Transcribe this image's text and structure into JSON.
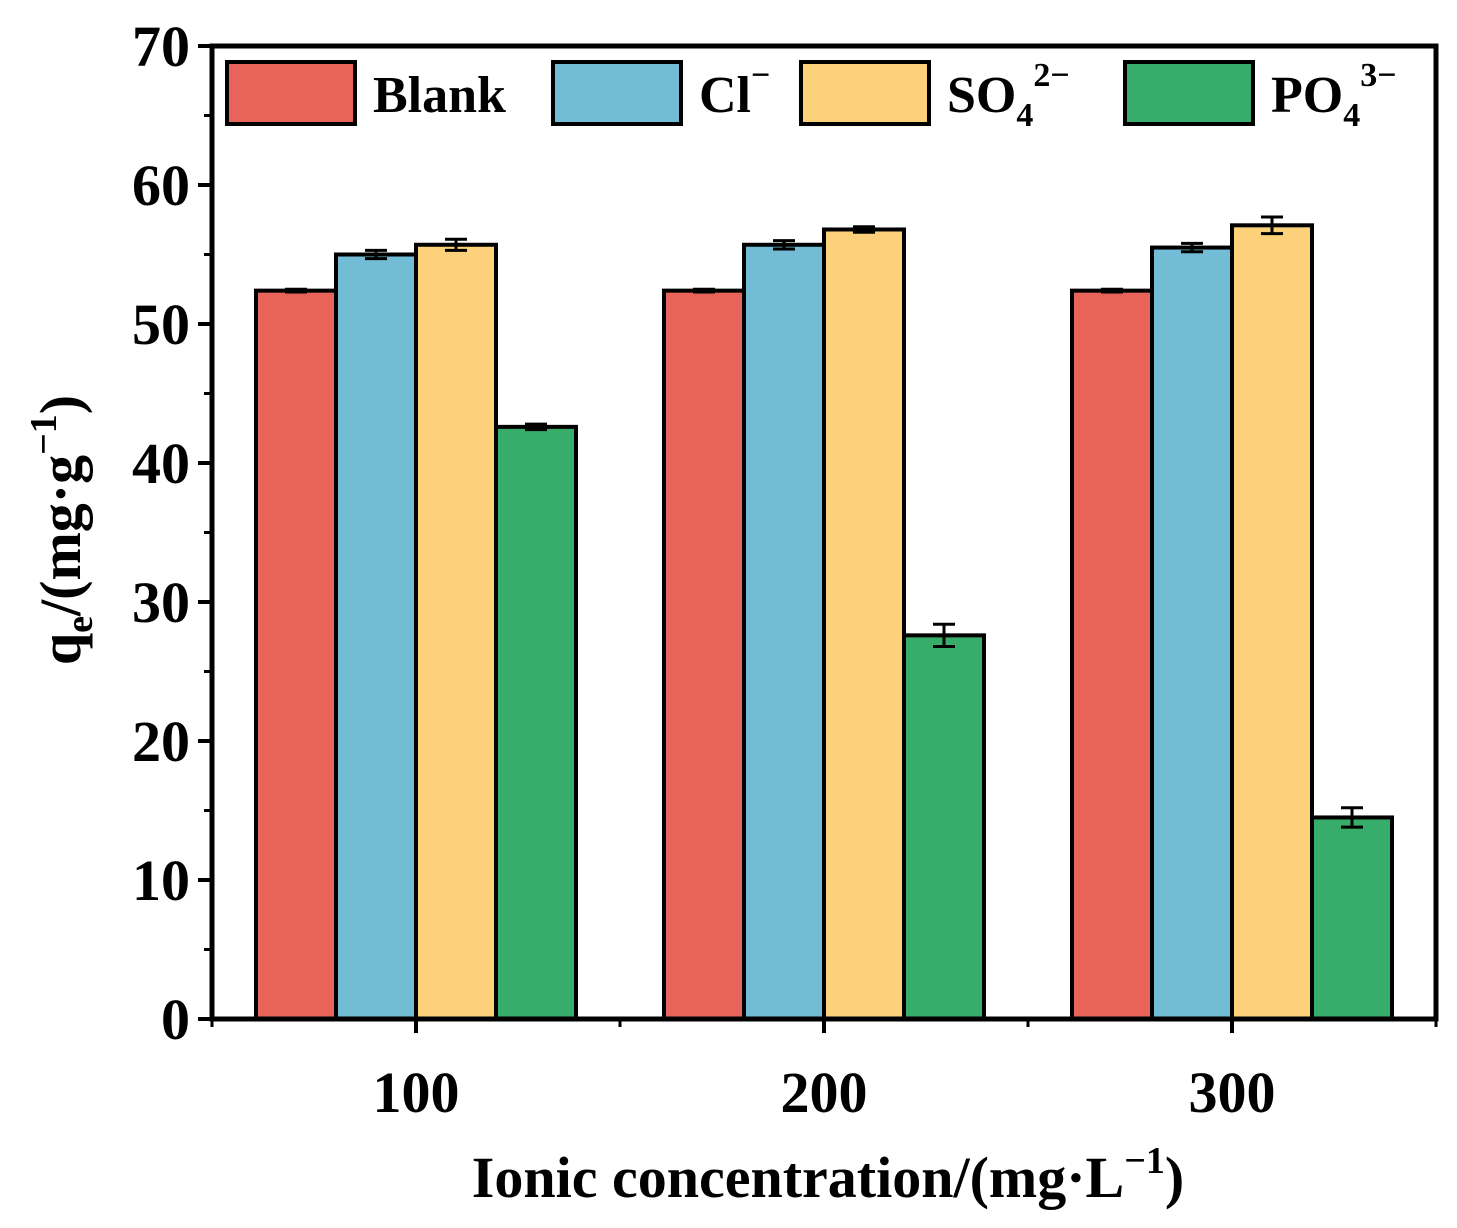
{
  "chart_data": {
    "type": "bar",
    "categories": [
      "100",
      "200",
      "300"
    ],
    "xlabel": {
      "main": "Ionic concentration/(mg·L",
      "sup": "−1",
      "close": ")"
    },
    "ylabel": {
      "q": "q",
      "sub": "e",
      "mid": "/(mg·g",
      "sup": "−1",
      "close": ")"
    },
    "ylim": [
      0,
      70
    ],
    "yticks": [
      "0",
      "10",
      "20",
      "30",
      "40",
      "50",
      "60",
      "70"
    ],
    "grid": false,
    "legend_position": "top",
    "series": [
      {
        "key": "blank",
        "name": "Blank",
        "color": "#E8635A",
        "values": [
          52.4,
          52.4,
          52.4
        ],
        "errors": [
          0.1,
          0.1,
          0.1
        ]
      },
      {
        "key": "cl",
        "name": "Cl",
        "sup": "−",
        "color": "#72BCD5",
        "values": [
          55.0,
          55.7,
          55.5
        ],
        "errors": [
          0.3,
          0.3,
          0.3
        ]
      },
      {
        "key": "so4",
        "name": "SO",
        "sub": "4",
        "sup": "2−",
        "color": "#FDD17A",
        "values": [
          55.7,
          56.8,
          57.1
        ],
        "errors": [
          0.4,
          0.2,
          0.6
        ]
      },
      {
        "key": "po4",
        "name": "PO",
        "sub": "4",
        "sup": "3−",
        "color": "#38AD6B",
        "values": [
          42.6,
          27.6,
          14.5
        ],
        "errors": [
          0.2,
          0.8,
          0.7
        ]
      }
    ]
  }
}
